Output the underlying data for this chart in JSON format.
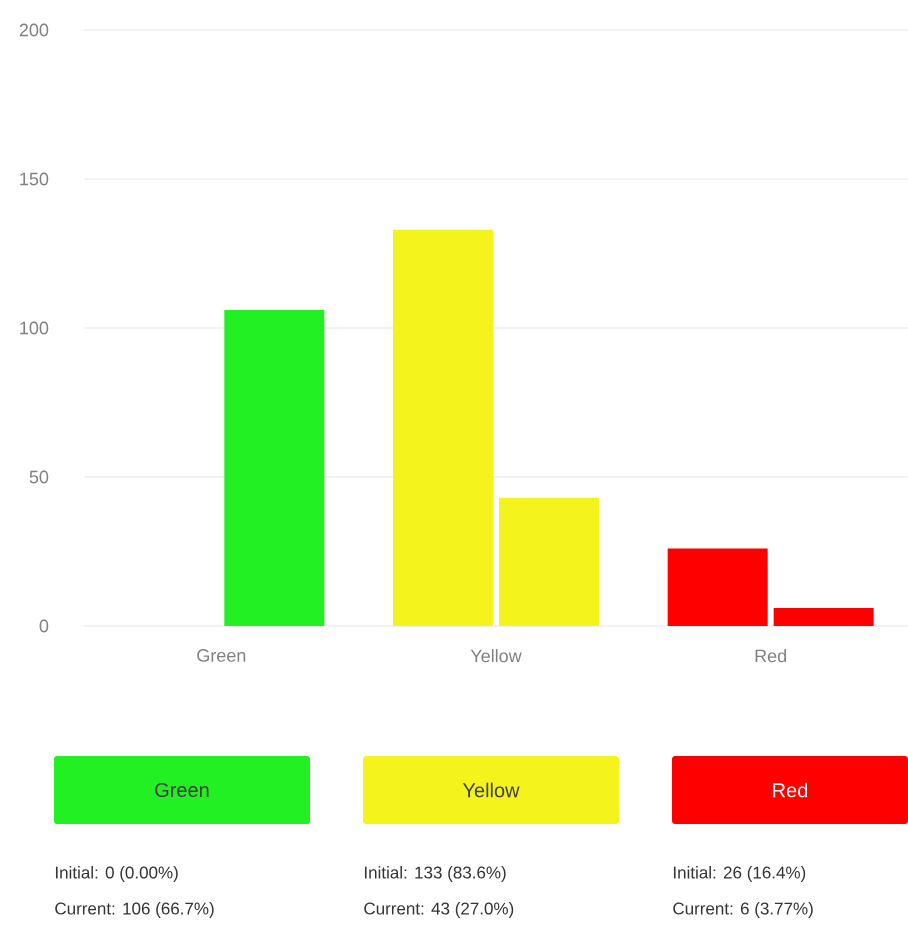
{
  "chart_data": {
    "type": "bar",
    "categories": [
      "Green",
      "Yellow",
      "Red"
    ],
    "series": [
      {
        "values": [
          0,
          133,
          26
        ],
        "colors": [
          "#22f022",
          "#f4f41c",
          "#fe0000"
        ]
      },
      {
        "values": [
          106,
          43,
          6
        ],
        "colors": [
          "#22f022",
          "#f4f41c",
          "#fe0000"
        ]
      }
    ],
    "ylim": [
      0,
      200
    ],
    "yticks": [
      0,
      50,
      100,
      150,
      200
    ],
    "grid": "y",
    "annotations": [
      "Initial: 0 (0.00%)",
      "Current: 106 (66.7%)",
      "Initial: 133 (83.6%)",
      "Current: 43 (27.0%)",
      "Initial: 26 (16.4%)",
      "Current: 6 (3.77%)"
    ]
  }
}
